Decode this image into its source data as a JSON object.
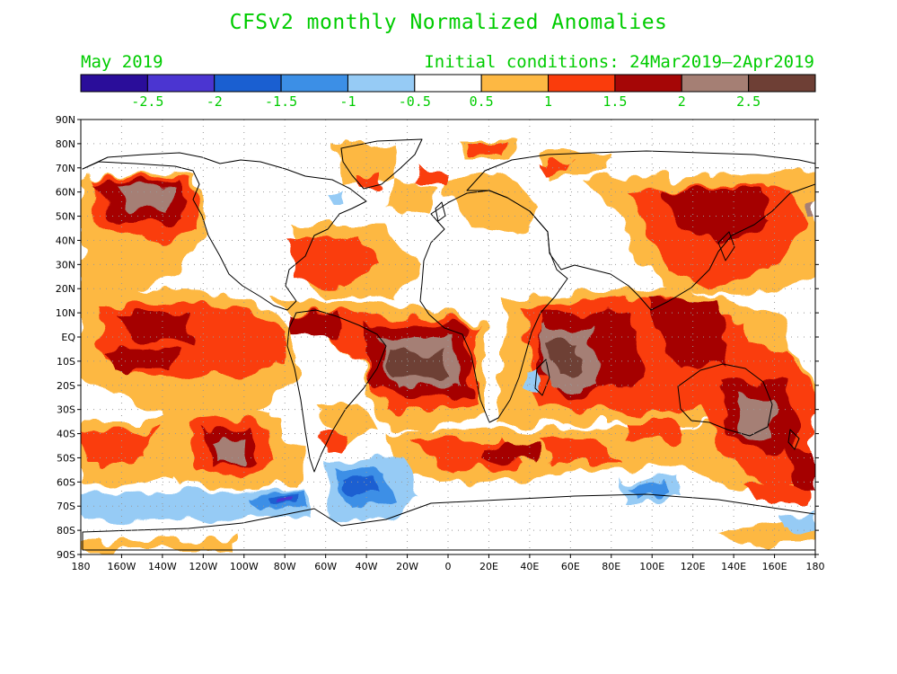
{
  "title": "CFSv2 monthly Normalized Anomalies",
  "valid_month": "May 2019",
  "initial_conditions": "Initial conditions: 24Mar2019—2Apr2019",
  "colorbar": {
    "colors": [
      "#2a0d9a",
      "#4b35d1",
      "#1a5fd1",
      "#3c8fe6",
      "#96cbf5",
      "#ffffff",
      "#fdb843",
      "#fa3c0c",
      "#a50606",
      "#a57f74",
      "#6e3f35"
    ],
    "labels": [
      "-2.5",
      "-2",
      "-1.5",
      "-1",
      "-0.5",
      "0.5",
      "1",
      "1.5",
      "2",
      "2.5"
    ]
  },
  "lat_labels": [
    "90N",
    "80N",
    "70N",
    "60N",
    "50N",
    "40N",
    "30N",
    "20N",
    "10N",
    "EQ",
    "10S",
    "20S",
    "30S",
    "40S",
    "50S",
    "60S",
    "70S",
    "80S",
    "90S"
  ],
  "lon_labels": [
    "180",
    "160W",
    "140W",
    "120W",
    "100W",
    "80W",
    "60W",
    "40W",
    "20W",
    "0",
    "20E",
    "40E",
    "60E",
    "80E",
    "100E",
    "120E",
    "140E",
    "160E",
    "180"
  ],
  "anomaly_regions": [
    {
      "name": "north-pacific-warm",
      "level": 2,
      "lon": -160,
      "lat": 52,
      "rx": 25,
      "ry": 9
    },
    {
      "name": "north-pacific-core",
      "level": 4,
      "lon": -160,
      "lat": 54,
      "rx": 11,
      "ry": 4
    },
    {
      "name": "tropical-east-pacific",
      "level": 3,
      "lon": -140,
      "lat": 7,
      "rx": 30,
      "ry": 5
    },
    {
      "name": "equatorial-south-atlantic",
      "level": 5,
      "lon": -5,
      "lat": -10,
      "rx": 12,
      "ry": 7
    },
    {
      "name": "indian-ocean-core",
      "level": 5,
      "lon": 65,
      "lat": -13,
      "rx": 10,
      "ry": 8
    },
    {
      "name": "australia-east",
      "level": 4,
      "lon": 155,
      "lat": -32,
      "rx": 8,
      "ry": 9
    },
    {
      "name": "southern-ocean-cold",
      "level": -2,
      "lon": -40,
      "lat": -60,
      "rx": 9,
      "ry": 7
    },
    {
      "name": "amundsen-cold",
      "level": -3,
      "lon": -80,
      "lat": -67,
      "rx": 10,
      "ry": 2
    }
  ]
}
